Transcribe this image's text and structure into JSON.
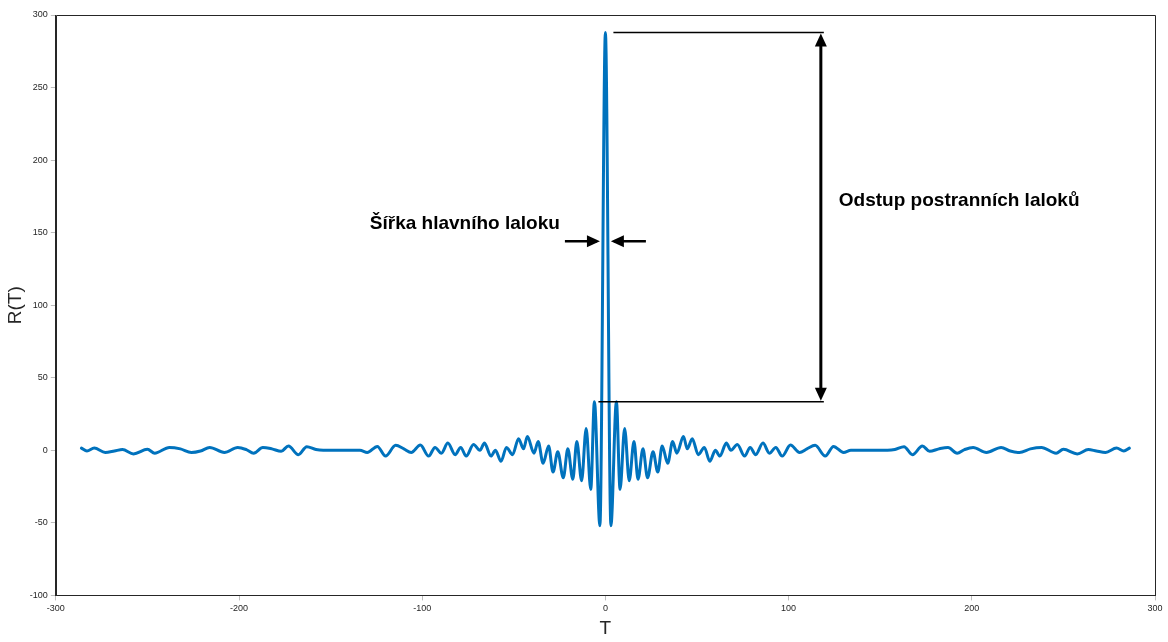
{
  "chart_data": {
    "type": "line",
    "xlabel": "T",
    "ylabel": "R(T)",
    "x": [
      -286,
      -283,
      -279,
      -273,
      -268,
      -263.6,
      -257.6,
      -250,
      -246,
      -238,
      -232,
      -226,
      -221,
      -216,
      -208,
      -200.7,
      -196,
      -192,
      -187,
      -182,
      -177,
      -173,
      -167.6,
      -163,
      -158,
      -154,
      -134,
      -130,
      -124.5,
      -120,
      -114.5,
      -110,
      -106,
      -101,
      -96.5,
      -93,
      -89.5,
      -86,
      -82,
      -79,
      -76,
      -72,
      -68.5,
      -66,
      -62.5,
      -60,
      -57,
      -54,
      -50.7,
      -47.4,
      -44.7,
      -42.6,
      -39,
      -36.7,
      -34,
      -31,
      -28.6,
      -26,
      -23,
      -20.5,
      -17.8,
      -15.6,
      -13,
      -10.5,
      -8,
      -6,
      -3,
      0,
      3,
      6,
      8,
      10.5,
      13,
      15.6,
      17.8,
      20.5,
      23,
      26,
      28.6,
      31,
      34,
      36.7,
      39,
      42.6,
      44.7,
      47.4,
      50.7,
      54,
      57,
      60,
      62.5,
      66,
      68.5,
      72,
      76,
      79,
      82,
      86,
      89.5,
      93,
      96.5,
      101,
      106,
      110,
      114.5,
      120,
      124.5,
      130,
      134,
      154,
      158,
      163,
      167.6,
      173,
      177,
      182,
      187,
      192,
      196,
      200.7,
      208,
      216,
      221,
      226,
      232,
      238,
      246,
      250,
      257.6,
      263.6,
      268,
      273,
      279,
      283,
      286
    ],
    "series": [
      {
        "color": "#0072bd",
        "values": [
          1.5,
          -0.5,
          1.5,
          -1.5,
          -0.5,
          0.5,
          -2.5,
          0.7,
          -2,
          2,
          1,
          -1.5,
          -0.5,
          2,
          -1.5,
          2,
          0.5,
          -2,
          2,
          1,
          -0.7,
          3,
          -3,
          2.5,
          0.5,
          0,
          0,
          -1.5,
          2.7,
          -4,
          3.4,
          1,
          -1.5,
          3.6,
          -4,
          2,
          -2,
          5,
          -3,
          2,
          -4,
          4,
          0,
          5,
          -4,
          0,
          -7.6,
          2,
          -3,
          8,
          1,
          9.5,
          -2,
          6,
          -9,
          3,
          -15,
          -1,
          -19,
          1,
          -20,
          6,
          -21,
          15,
          -27,
          33.5,
          -52,
          288,
          -52,
          33.5,
          -27,
          15,
          -21,
          6,
          -20,
          1,
          -19,
          -1,
          -15,
          3,
          -9,
          6,
          -2,
          9.5,
          1,
          8,
          -3,
          2,
          -7.6,
          0,
          -4,
          5,
          0,
          4,
          -4,
          2,
          -3,
          5,
          -2,
          2,
          -4,
          3.6,
          -1.5,
          1,
          3.4,
          -4,
          2.7,
          -1.5,
          0,
          0,
          0.5,
          2.5,
          -3,
          3,
          -0.7,
          1,
          2,
          -2,
          0.5,
          2,
          -1.5,
          2,
          -0.5,
          -1.5,
          1,
          2,
          -2,
          0.7,
          -2.5,
          0.5,
          -0.5,
          -1.5,
          1.5,
          -0.5,
          1.5
        ]
      }
    ],
    "xlim": [
      -300,
      300
    ],
    "xticks": [
      -300,
      -200,
      -100,
      0,
      100,
      200,
      300
    ],
    "ylim": [
      -100,
      300
    ],
    "yticks": [
      -100,
      -50,
      0,
      50,
      100,
      150,
      200,
      250,
      300
    ],
    "legend": false,
    "marker": "none",
    "line_style": "solid",
    "annotations": [
      "Šířka hlavního laloku",
      "Odstup postranních laloků"
    ]
  }
}
